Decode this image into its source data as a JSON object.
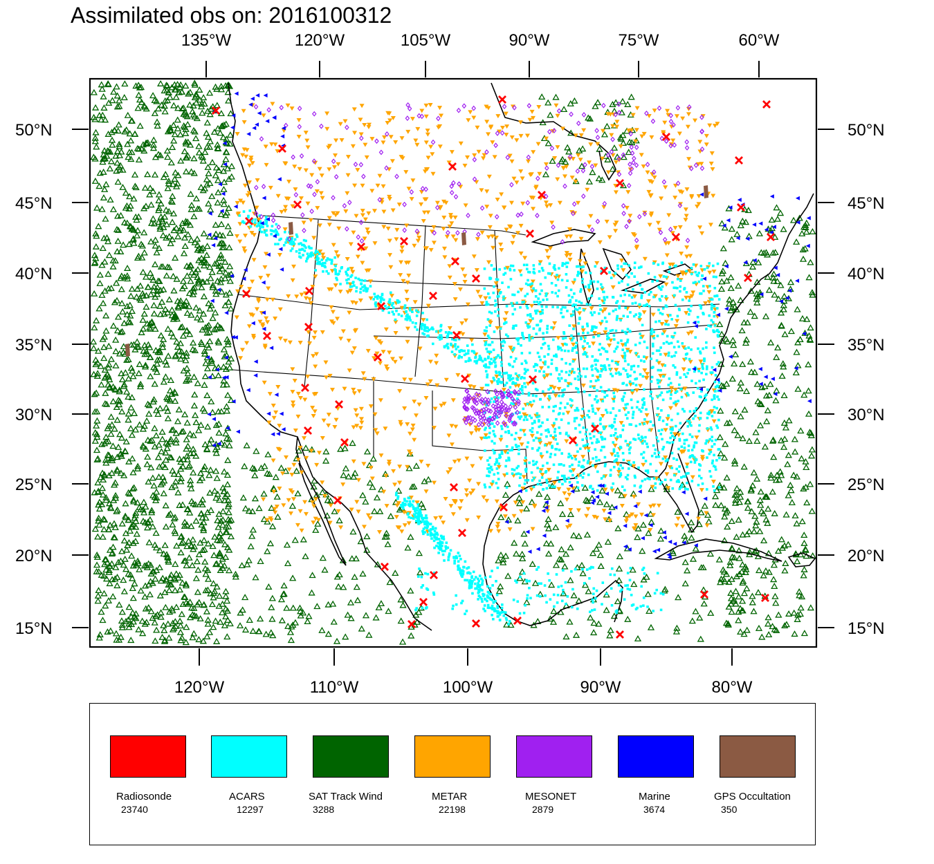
{
  "title": "Assimilated obs on: 2016100312",
  "map": {
    "top_lon_labels": [
      "135°W",
      "120°W",
      "105°W",
      "90°W",
      "75°W",
      "60°W"
    ],
    "bottom_lon_labels": [
      "120°W",
      "110°W",
      "100°W",
      "90°W",
      "80°W"
    ],
    "lat_labels": [
      "50°N",
      "45°N",
      "40°N",
      "35°N",
      "30°N",
      "25°N",
      "20°N",
      "15°N"
    ],
    "top_lon_values": [
      -135,
      -120,
      -105,
      -90,
      -75,
      -60
    ],
    "bottom_lon_values": [
      -120,
      -110,
      -100,
      -90,
      -80
    ],
    "lat_values": [
      50,
      45,
      40,
      35,
      30,
      25,
      20,
      15
    ]
  },
  "legend": [
    {
      "name": "Radiosonde",
      "count": "23740",
      "color": "#ff0000",
      "marker": "x"
    },
    {
      "name": "ACARS",
      "count": "12297",
      "color": "#00ffff",
      "marker": "square"
    },
    {
      "name": "SAT Track Wind",
      "count": "3288",
      "color": "#006400",
      "marker": "triangle-up"
    },
    {
      "name": "METAR",
      "count": "22198",
      "color": "#ffa500",
      "marker": "triangle-down"
    },
    {
      "name": "MESONET",
      "count": "2879",
      "color": "#a020f0",
      "marker": "diamond"
    },
    {
      "name": "Marine",
      "count": "3674",
      "color": "#0000ff",
      "marker": "triangle-left"
    },
    {
      "name": "GPS Occultation",
      "count": "350",
      "color": "#8b5a43",
      "marker": "bar"
    }
  ]
}
